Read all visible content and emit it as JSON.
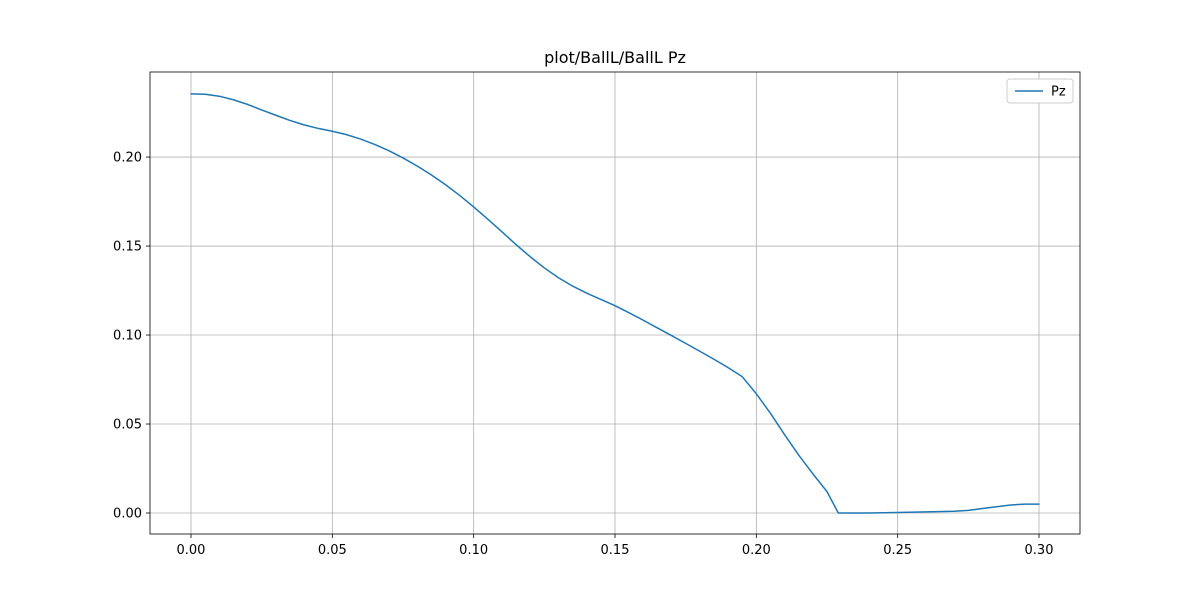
{
  "chart_data": {
    "type": "line",
    "title": "plot/BallL/BallL Pz",
    "xlabel": "",
    "ylabel": "",
    "xlim": [
      -0.0145,
      0.3145
    ],
    "ylim": [
      -0.0118,
      0.2478
    ],
    "xticks": [
      0.0,
      0.05,
      0.1,
      0.15,
      0.2,
      0.25,
      0.3
    ],
    "xtick_labels": [
      "0.00",
      "0.05",
      "0.10",
      "0.15",
      "0.20",
      "0.25",
      "0.30"
    ],
    "yticks": [
      0.0,
      0.05,
      0.1,
      0.15,
      0.2
    ],
    "ytick_labels": [
      "0.00",
      "0.05",
      "0.10",
      "0.15",
      "0.20"
    ],
    "grid": true,
    "legend_position": "top-right",
    "series": [
      {
        "name": "Pz",
        "color": "#1f77b4",
        "x": [
          0.0,
          0.005,
          0.01,
          0.015,
          0.02,
          0.025,
          0.03,
          0.035,
          0.04,
          0.045,
          0.05,
          0.055,
          0.06,
          0.065,
          0.07,
          0.075,
          0.08,
          0.085,
          0.09,
          0.095,
          0.1,
          0.105,
          0.11,
          0.115,
          0.12,
          0.125,
          0.13,
          0.135,
          0.14,
          0.145,
          0.15,
          0.155,
          0.16,
          0.165,
          0.17,
          0.175,
          0.18,
          0.185,
          0.19,
          0.195,
          0.2,
          0.205,
          0.21,
          0.215,
          0.22,
          0.225,
          0.229,
          0.235,
          0.24,
          0.25,
          0.26,
          0.27,
          0.275,
          0.28,
          0.285,
          0.29,
          0.295,
          0.3
        ],
        "values": [
          0.2355,
          0.2353,
          0.2342,
          0.2322,
          0.2296,
          0.2265,
          0.2235,
          0.2206,
          0.2181,
          0.2161,
          0.2145,
          0.2126,
          0.2101,
          0.2071,
          0.2036,
          0.1995,
          0.195,
          0.19,
          0.1845,
          0.1785,
          0.172,
          0.1651,
          0.158,
          0.1508,
          0.144,
          0.1377,
          0.1322,
          0.1275,
          0.1235,
          0.12,
          0.1165,
          0.1125,
          0.1083,
          0.104,
          0.0997,
          0.0953,
          0.0909,
          0.0864,
          0.0817,
          0.0766,
          0.067,
          0.056,
          0.044,
          0.0325,
          0.022,
          0.012,
          0.0,
          0.0,
          0.0,
          0.0003,
          0.0006,
          0.001,
          0.0015,
          0.0025,
          0.0035,
          0.0045,
          0.005,
          0.005
        ]
      }
    ]
  }
}
